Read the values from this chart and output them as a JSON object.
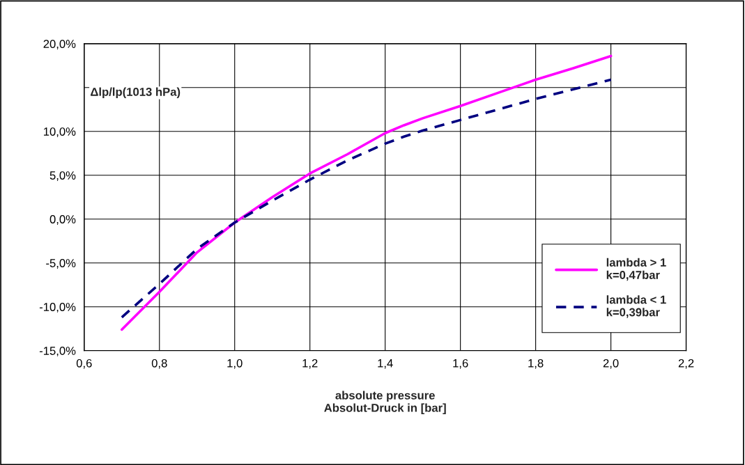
{
  "chart_data": {
    "type": "line",
    "xlabel": "absolute pressure\nAbsolut-Druck in [bar]",
    "ylabel": "Δlp/lp(1013 hPa)",
    "x": [
      0.7,
      0.8,
      0.9,
      1.0,
      1.1,
      1.2,
      1.3,
      1.4,
      1.45,
      1.5,
      1.6,
      1.7,
      1.8,
      1.9,
      2.0
    ],
    "series": [
      {
        "name": "lambda > 1\nk=0,47bar",
        "color": "#ff00ff",
        "line_style": "solid",
        "values": [
          -12.6,
          -8.3,
          -3.8,
          -0.4,
          2.5,
          5.2,
          7.4,
          9.8,
          10.7,
          11.5,
          12.9,
          14.4,
          15.9,
          17.2,
          18.6
        ]
      },
      {
        "name": "lambda < 1\nk=0,39bar",
        "color": "#000080",
        "line_style": "dashed",
        "values": [
          -11.2,
          -7.4,
          -3.4,
          -0.4,
          2.1,
          4.5,
          6.7,
          8.6,
          9.4,
          10.1,
          11.3,
          12.5,
          13.7,
          14.8,
          15.9
        ]
      }
    ],
    "xlim": [
      0.6,
      2.2
    ],
    "xticks": [
      {
        "value": 0.6,
        "label": "0,6"
      },
      {
        "value": 0.8,
        "label": "0,8"
      },
      {
        "value": 1.0,
        "label": "1,0"
      },
      {
        "value": 1.2,
        "label": "1,2"
      },
      {
        "value": 1.4,
        "label": "1,4"
      },
      {
        "value": 1.6,
        "label": "1,6"
      },
      {
        "value": 1.8,
        "label": "1,8"
      },
      {
        "value": 2.0,
        "label": "2,0"
      },
      {
        "value": 2.2,
        "label": "2,2"
      }
    ],
    "ylim": [
      -15,
      20
    ],
    "yticks": [
      {
        "value": -15,
        "label": "-15,0%"
      },
      {
        "value": -10,
        "label": "-10,0%"
      },
      {
        "value": -5,
        "label": "-5,0%"
      },
      {
        "value": 0,
        "label": "0,0%"
      },
      {
        "value": 5,
        "label": "5,0%"
      },
      {
        "value": 10,
        "label": "10,0%"
      },
      {
        "value": 15,
        "label": null
      },
      {
        "value": 20,
        "label": "20,0%"
      }
    ],
    "grid": true,
    "legend": "lower right"
  }
}
